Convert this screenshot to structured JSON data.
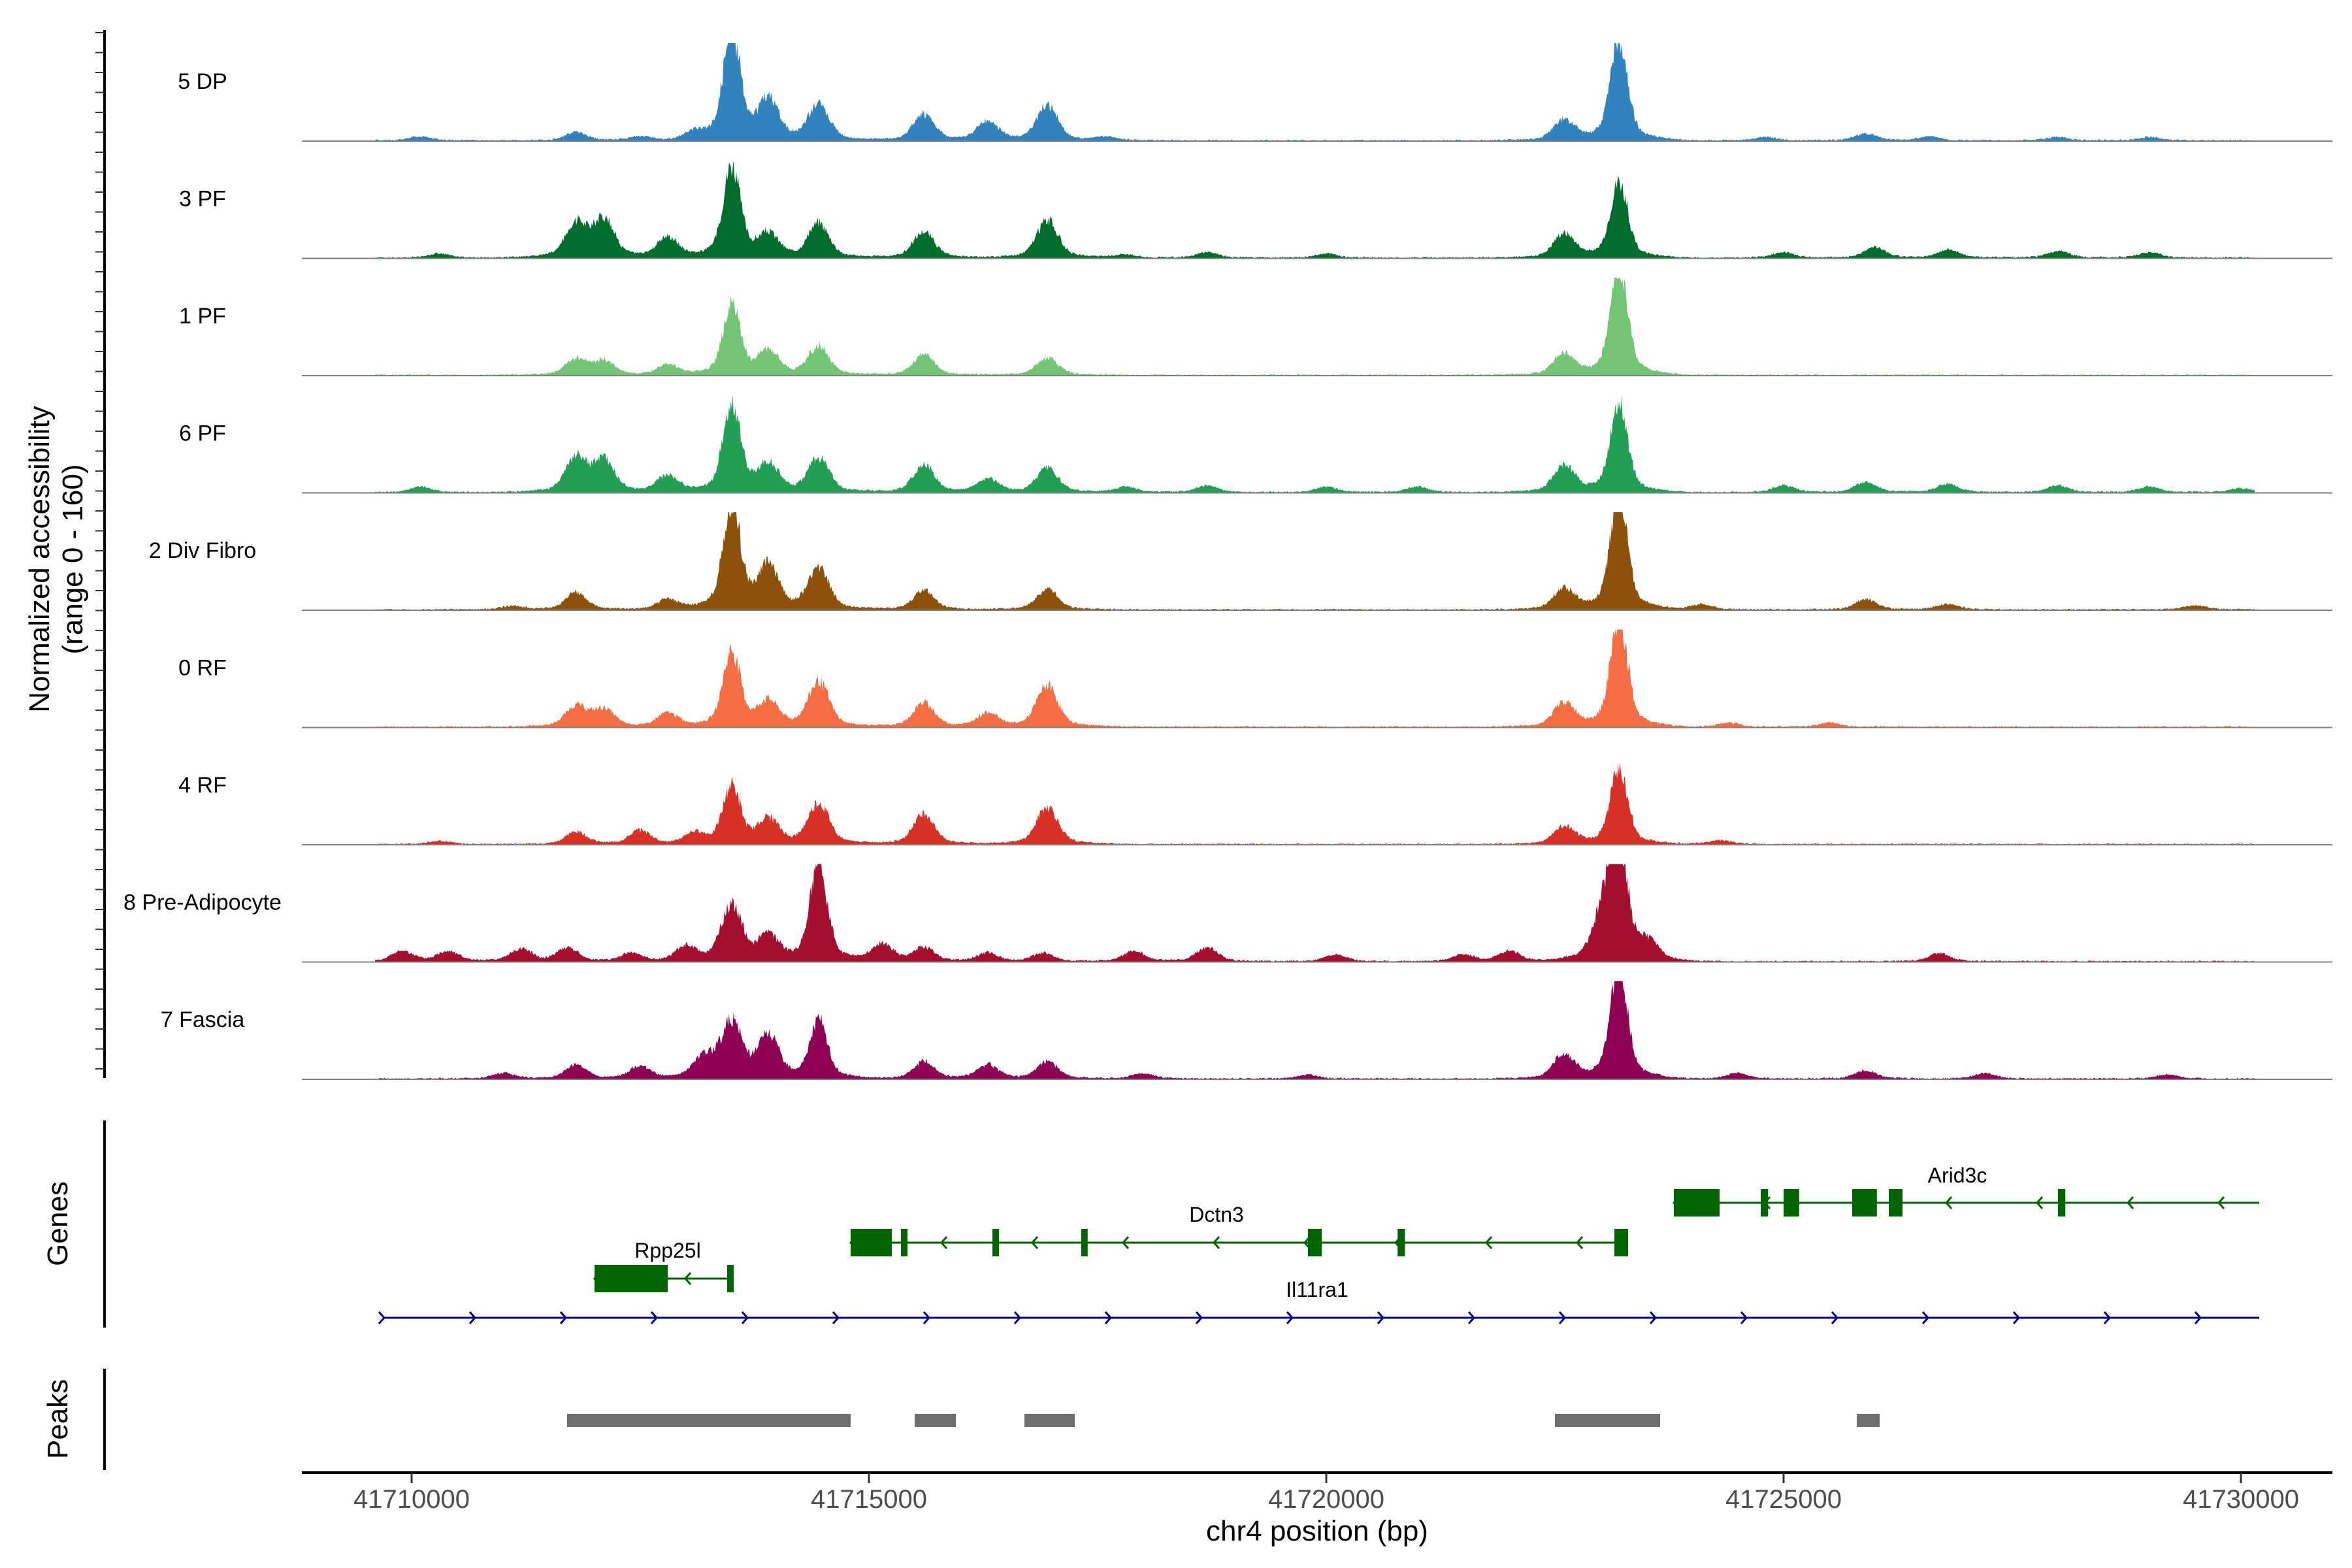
{
  "chart_data": {
    "type": "area",
    "title": "",
    "region": "chr4",
    "xlabel": "chr4 position (bp)",
    "xlim": [
      41708800,
      41731000
    ],
    "xticks": [
      41710000,
      41715000,
      41720000,
      41725000,
      41730000
    ],
    "xtick_labels": [
      "41710000",
      "41715000",
      "41720000",
      "41725000",
      "41730000"
    ],
    "ylabel": "Normalized accessibility",
    "ylabel_range": "(range 0 - 160)",
    "ylim": [
      0,
      160
    ],
    "peak_positions": [
      41713500,
      41723200
    ],
    "series": [
      {
        "name": "5 DP",
        "color": "#3182bd",
        "peaks": [
          [
            41710100,
            6
          ],
          [
            41711800,
            12
          ],
          [
            41712500,
            6
          ],
          [
            41713100,
            10
          ],
          [
            41713500,
            160
          ],
          [
            41713900,
            55
          ],
          [
            41714450,
            52
          ],
          [
            41715600,
            38
          ],
          [
            41716300,
            28
          ],
          [
            41716950,
            50
          ],
          [
            41717600,
            5
          ],
          [
            41722600,
            30
          ],
          [
            41723200,
            150
          ],
          [
            41724800,
            5
          ],
          [
            41725900,
            10
          ],
          [
            41726600,
            6
          ],
          [
            41728000,
            5
          ],
          [
            41729000,
            5
          ]
        ]
      },
      {
        "name": "3 PF",
        "color": "#006d2c",
        "peaks": [
          [
            41710300,
            6
          ],
          [
            41711800,
            50
          ],
          [
            41712100,
            55
          ],
          [
            41712800,
            30
          ],
          [
            41713500,
            135
          ],
          [
            41713900,
            32
          ],
          [
            41714450,
            50
          ],
          [
            41715600,
            38
          ],
          [
            41716950,
            55
          ],
          [
            41717800,
            5
          ],
          [
            41718700,
            8
          ],
          [
            41720000,
            6
          ],
          [
            41722600,
            35
          ],
          [
            41723200,
            110
          ],
          [
            41725000,
            8
          ],
          [
            41726000,
            15
          ],
          [
            41726800,
            12
          ],
          [
            41728000,
            10
          ],
          [
            41729000,
            8
          ]
        ]
      },
      {
        "name": "1 PF",
        "color": "#74c476",
        "peaks": [
          [
            41711800,
            22
          ],
          [
            41712100,
            20
          ],
          [
            41712800,
            15
          ],
          [
            41713500,
            100
          ],
          [
            41713900,
            35
          ],
          [
            41714450,
            40
          ],
          [
            41715600,
            30
          ],
          [
            41716950,
            25
          ],
          [
            41722600,
            32
          ],
          [
            41723200,
            155
          ]
        ]
      },
      {
        "name": "6 PF",
        "color": "#239f55",
        "peaks": [
          [
            41710100,
            8
          ],
          [
            41711800,
            50
          ],
          [
            41712100,
            45
          ],
          [
            41712800,
            25
          ],
          [
            41713500,
            130
          ],
          [
            41713900,
            40
          ],
          [
            41714450,
            50
          ],
          [
            41715600,
            40
          ],
          [
            41716300,
            20
          ],
          [
            41716950,
            35
          ],
          [
            41717800,
            8
          ],
          [
            41718700,
            10
          ],
          [
            41720000,
            8
          ],
          [
            41721000,
            8
          ],
          [
            41722600,
            40
          ],
          [
            41723200,
            130
          ],
          [
            41725000,
            10
          ],
          [
            41725900,
            15
          ],
          [
            41726800,
            12
          ],
          [
            41728000,
            10
          ],
          [
            41729000,
            8
          ],
          [
            41730000,
            6
          ]
        ]
      },
      {
        "name": "2 Div Fibro",
        "color": "#8c510a",
        "peaks": [
          [
            41711100,
            5
          ],
          [
            41711800,
            25
          ],
          [
            41712800,
            15
          ],
          [
            41713500,
            155
          ],
          [
            41713900,
            60
          ],
          [
            41714450,
            60
          ],
          [
            41715600,
            28
          ],
          [
            41716950,
            30
          ],
          [
            41722600,
            30
          ],
          [
            41723200,
            165
          ],
          [
            41724100,
            8
          ],
          [
            41725900,
            15
          ],
          [
            41726800,
            8
          ],
          [
            41729500,
            6
          ]
        ]
      },
      {
        "name": "0 RF",
        "color": "#f46d43",
        "peaks": [
          [
            41711800,
            30
          ],
          [
            41712100,
            25
          ],
          [
            41712800,
            20
          ],
          [
            41713500,
            110
          ],
          [
            41713900,
            35
          ],
          [
            41714450,
            65
          ],
          [
            41715600,
            35
          ],
          [
            41716300,
            20
          ],
          [
            41716950,
            60
          ],
          [
            41722600,
            35
          ],
          [
            41723200,
            155
          ],
          [
            41724400,
            6
          ],
          [
            41725500,
            6
          ]
        ]
      },
      {
        "name": "4 RF",
        "color": "#d73027",
        "peaks": [
          [
            41710300,
            5
          ],
          [
            41711800,
            18
          ],
          [
            41712500,
            20
          ],
          [
            41713100,
            15
          ],
          [
            41713500,
            85
          ],
          [
            41713900,
            35
          ],
          [
            41714450,
            60
          ],
          [
            41715600,
            45
          ],
          [
            41716950,
            55
          ],
          [
            41722600,
            25
          ],
          [
            41723200,
            110
          ],
          [
            41724300,
            6
          ]
        ]
      },
      {
        "name": "8 Pre-Adipocyte",
        "color": "#a50f2f",
        "peaks": [
          [
            41709900,
            15
          ],
          [
            41710400,
            15
          ],
          [
            41711200,
            18
          ],
          [
            41711700,
            20
          ],
          [
            41712400,
            12
          ],
          [
            41713000,
            20
          ],
          [
            41713500,
            80
          ],
          [
            41713900,
            35
          ],
          [
            41714450,
            145
          ],
          [
            41715150,
            25
          ],
          [
            41715600,
            20
          ],
          [
            41716300,
            12
          ],
          [
            41716900,
            12
          ],
          [
            41717900,
            15
          ],
          [
            41718700,
            20
          ],
          [
            41720100,
            10
          ],
          [
            41721500,
            10
          ],
          [
            41722000,
            15
          ],
          [
            41723050,
            75
          ],
          [
            41723200,
            150
          ],
          [
            41723500,
            25
          ],
          [
            41726700,
            12
          ]
        ]
      },
      {
        "name": "7 Fascia",
        "color": "#8e0152",
        "peaks": [
          [
            41711000,
            8
          ],
          [
            41711800,
            20
          ],
          [
            41712500,
            18
          ],
          [
            41713200,
            30
          ],
          [
            41713500,
            80
          ],
          [
            41713900,
            60
          ],
          [
            41714450,
            85
          ],
          [
            41715600,
            25
          ],
          [
            41716300,
            20
          ],
          [
            41716950,
            25
          ],
          [
            41718000,
            8
          ],
          [
            41719800,
            6
          ],
          [
            41722600,
            35
          ],
          [
            41723200,
            165
          ],
          [
            41724500,
            8
          ],
          [
            41725900,
            12
          ],
          [
            41727200,
            8
          ],
          [
            41729200,
            6
          ]
        ]
      }
    ],
    "genes_title": "Genes",
    "genes": [
      {
        "name": "Arid3c",
        "strand": "-",
        "color": "#006400",
        "start": 41723800,
        "end": 41730200,
        "exons": [
          [
            41723800,
            41724300
          ],
          [
            41724750,
            41724830
          ],
          [
            41725000,
            41725170
          ],
          [
            41725750,
            41726020
          ],
          [
            41726150,
            41726300
          ],
          [
            41728000,
            41728080
          ]
        ]
      },
      {
        "name": "Dctn3",
        "strand": "-",
        "color": "#006400",
        "start": 41714800,
        "end": 41723300,
        "exons": [
          [
            41714800,
            41715250
          ],
          [
            41715350,
            41715400
          ],
          [
            41716350,
            41716420
          ],
          [
            41717320,
            41717390
          ],
          [
            41719800,
            41719950
          ],
          [
            41720780,
            41720860
          ],
          [
            41723150,
            41723300
          ]
        ]
      },
      {
        "name": "Rpp25l",
        "strand": "-",
        "color": "#006400",
        "start": 41712000,
        "end": 41713500,
        "exons": [
          [
            41712000,
            41712800
          ],
          [
            41713450,
            41713500
          ]
        ]
      },
      {
        "name": "Il11ra1",
        "strand": "+",
        "color": "#000080",
        "start": 41709700,
        "end": 41730200,
        "exons": []
      }
    ],
    "peaks_title": "Peaks",
    "peaks": [
      [
        41711700,
        41714800
      ],
      [
        41715500,
        41715950
      ],
      [
        41716700,
        41717250
      ],
      [
        41722500,
        41723650
      ],
      [
        41725800,
        41726050
      ]
    ]
  }
}
